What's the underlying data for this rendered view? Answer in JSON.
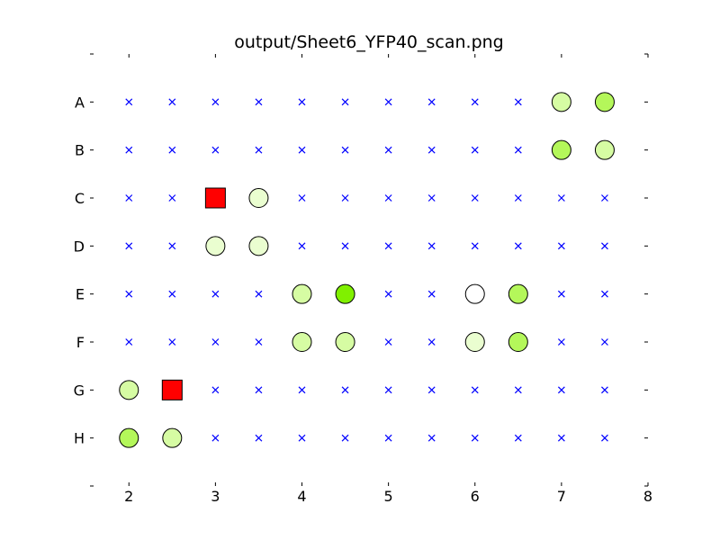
{
  "chart_data": {
    "type": "scatter",
    "title": "output/Sheet6_YFP40_scan.png",
    "xlabel": "",
    "ylabel": "",
    "xlim": [
      1.55,
      8.0
    ],
    "ylim": [
      0,
      9
    ],
    "xticks": [
      2,
      3,
      4,
      5,
      6,
      7,
      8
    ],
    "xtick_labels": [
      "2",
      "3",
      "4",
      "5",
      "6",
      "7",
      "8"
    ],
    "yticks": [
      0,
      1,
      2,
      3,
      4,
      5,
      6,
      7,
      8,
      9
    ],
    "yticks_labeled": [
      1,
      2,
      3,
      4,
      5,
      6,
      7,
      8
    ],
    "ytick_labels": [
      "A",
      "B",
      "C",
      "D",
      "E",
      "F",
      "G",
      "H"
    ],
    "grid": false,
    "legend": "none",
    "columns": [
      2,
      2.5,
      3,
      3.5,
      4,
      4.5,
      5,
      5.5,
      6,
      6.5,
      7,
      7.5
    ],
    "empty_marker": {
      "shape": "x",
      "color": "#0000ff"
    },
    "wells": [
      {
        "row": "A",
        "x": 7,
        "shape": "circle",
        "color": "#d6fca3"
      },
      {
        "row": "A",
        "x": 7.5,
        "shape": "circle",
        "color": "#b4f75a"
      },
      {
        "row": "B",
        "x": 7,
        "shape": "circle",
        "color": "#b4f75a"
      },
      {
        "row": "B",
        "x": 7.5,
        "shape": "circle",
        "color": "#d6fca3"
      },
      {
        "row": "C",
        "x": 3,
        "shape": "square",
        "color": "#ff0000"
      },
      {
        "row": "C",
        "x": 3.5,
        "shape": "circle",
        "color": "#eafed0"
      },
      {
        "row": "D",
        "x": 3,
        "shape": "circle",
        "color": "#eafed0"
      },
      {
        "row": "D",
        "x": 3.5,
        "shape": "circle",
        "color": "#eafed0"
      },
      {
        "row": "E",
        "x": 4,
        "shape": "circle",
        "color": "#d6fca3"
      },
      {
        "row": "E",
        "x": 4.5,
        "shape": "circle",
        "color": "#80f000"
      },
      {
        "row": "E",
        "x": 6,
        "shape": "circle",
        "color": "#ffffff"
      },
      {
        "row": "E",
        "x": 6.5,
        "shape": "circle",
        "color": "#b4f75a"
      },
      {
        "row": "F",
        "x": 4,
        "shape": "circle",
        "color": "#d6fca3"
      },
      {
        "row": "F",
        "x": 4.5,
        "shape": "circle",
        "color": "#d6fca3"
      },
      {
        "row": "F",
        "x": 6,
        "shape": "circle",
        "color": "#eafed0"
      },
      {
        "row": "F",
        "x": 6.5,
        "shape": "circle",
        "color": "#b4f75a"
      },
      {
        "row": "G",
        "x": 2,
        "shape": "circle",
        "color": "#d6fca3"
      },
      {
        "row": "G",
        "x": 2.5,
        "shape": "square",
        "color": "#ff0000"
      },
      {
        "row": "H",
        "x": 2,
        "shape": "circle",
        "color": "#b4f75a"
      },
      {
        "row": "H",
        "x": 2.5,
        "shape": "circle",
        "color": "#d6fca3"
      }
    ]
  }
}
